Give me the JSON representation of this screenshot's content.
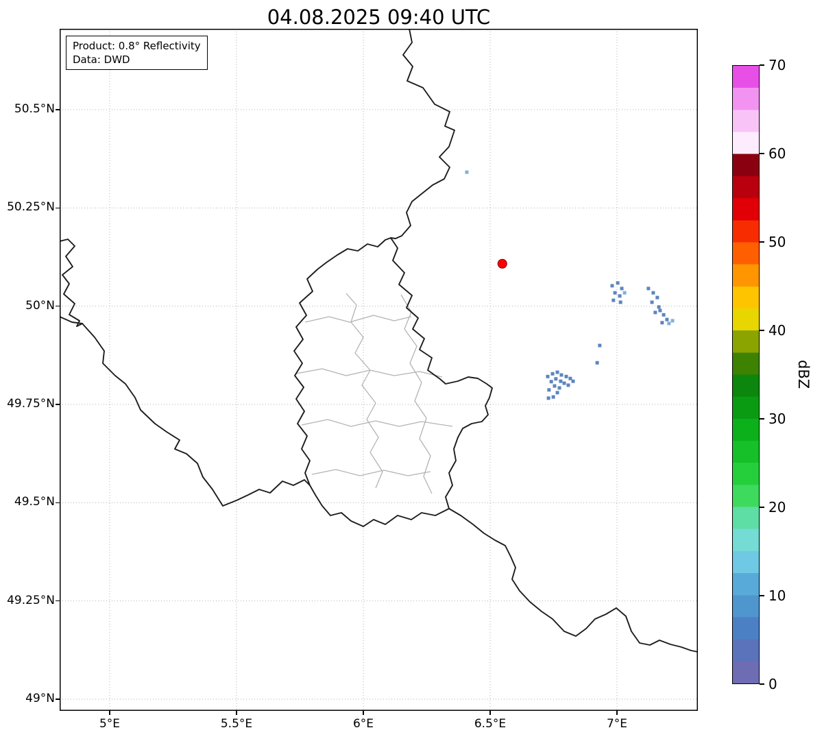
{
  "title": "04.08.2025 09:40 UTC",
  "info_box": {
    "line1": "Product: 0.8° Reflectivity",
    "line2": "Data: DWD"
  },
  "map": {
    "x_ticks": [
      {
        "label": "5°E",
        "lon": 5.0
      },
      {
        "label": "5.5°E",
        "lon": 5.5
      },
      {
        "label": "6°E",
        "lon": 6.0
      },
      {
        "label": "6.5°E",
        "lon": 6.5
      },
      {
        "label": "7°E",
        "lon": 7.0
      }
    ],
    "y_ticks": [
      {
        "label": "50.5°N",
        "lat": 50.5
      },
      {
        "label": "50.25°N",
        "lat": 50.25
      },
      {
        "label": "50°N",
        "lat": 50.0
      },
      {
        "label": "49.75°N",
        "lat": 49.75
      },
      {
        "label": "49.5°N",
        "lat": 49.5
      },
      {
        "label": "49.25°N",
        "lat": 49.25
      },
      {
        "label": "49°N",
        "lat": 49.0
      }
    ],
    "radar_site": {
      "lon": 6.548,
      "lat": 50.108,
      "color": "#ff0000",
      "edge_color": "#7a0000"
    },
    "echo_color": "#5d84c0",
    "echo_color_light": "#84aed6",
    "echo_points": [
      [
        6.981,
        50.052
      ],
      [
        7.003,
        50.059
      ],
      [
        7.019,
        50.045
      ],
      [
        6.992,
        50.034
      ],
      [
        7.011,
        50.026
      ],
      [
        6.986,
        50.015
      ],
      [
        7.014,
        50.01
      ],
      [
        7.124,
        50.045
      ],
      [
        7.143,
        50.034
      ],
      [
        7.159,
        50.022
      ],
      [
        7.138,
        50.01
      ],
      [
        7.165,
        49.998
      ],
      [
        7.151,
        49.984
      ],
      [
        7.17,
        49.989
      ],
      [
        7.184,
        49.978
      ],
      [
        7.197,
        49.966
      ],
      [
        7.178,
        49.958
      ],
      [
        6.932,
        49.9
      ],
      [
        6.922,
        49.856
      ],
      [
        6.727,
        49.821
      ],
      [
        6.746,
        49.828
      ],
      [
        6.765,
        49.832
      ],
      [
        6.781,
        49.825
      ],
      [
        6.8,
        49.821
      ],
      [
        6.816,
        49.816
      ],
      [
        6.759,
        49.815
      ],
      [
        6.778,
        49.809
      ],
      [
        6.741,
        49.808
      ],
      [
        6.792,
        49.804
      ],
      [
        6.827,
        49.809
      ],
      [
        6.754,
        49.797
      ],
      [
        6.773,
        49.792
      ],
      [
        6.732,
        49.787
      ],
      [
        6.765,
        49.78
      ],
      [
        6.749,
        49.769
      ],
      [
        6.73,
        49.766
      ],
      [
        6.808,
        49.799
      ]
    ],
    "echo_points_light": [
      [
        6.408,
        50.341
      ],
      [
        7.03,
        50.034
      ],
      [
        7.205,
        49.956
      ],
      [
        7.219,
        49.963
      ]
    ]
  },
  "colorbar": {
    "label": "dBZ",
    "min": 0,
    "max": 70,
    "ticks": [
      0,
      10,
      20,
      30,
      40,
      50,
      60,
      70
    ],
    "band_step_dbz": 2.5,
    "band_colors_bottom_to_top": [
      "#6e6cb3",
      "#5a73bb",
      "#4c80c4",
      "#4f95ce",
      "#58aad9",
      "#6fc8e4",
      "#74dcd4",
      "#5edda4",
      "#3eda5e",
      "#25cf3c",
      "#15c028",
      "#0cb01b",
      "#0a9b12",
      "#0c860c",
      "#3d8200",
      "#8ba400",
      "#e8d600",
      "#ffc400",
      "#ff9500",
      "#ff5f00",
      "#f72c00",
      "#e00005",
      "#b8000f",
      "#8a0011",
      "#fdecfd",
      "#f8c4f8",
      "#f293f2",
      "#e74fe7"
    ]
  }
}
